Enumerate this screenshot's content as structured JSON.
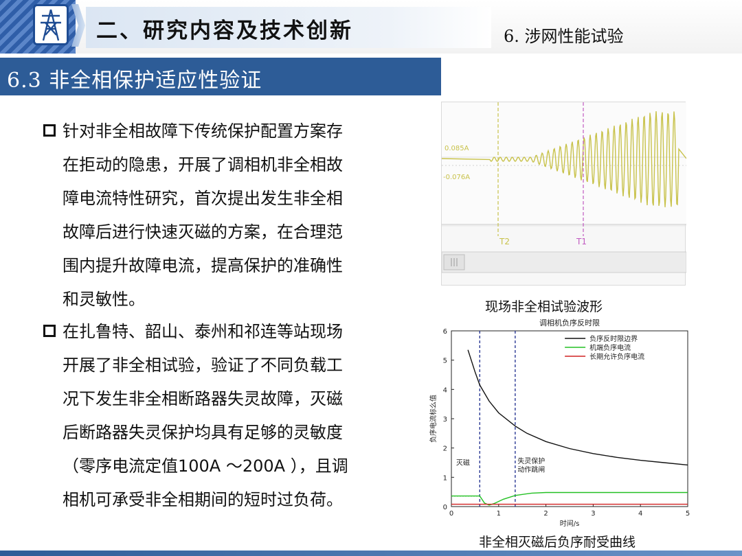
{
  "header": {
    "title": "二、研究内容及技术创新",
    "subtitle": "6. 涉网性能试验"
  },
  "section": {
    "title": "6.3 非全相保护适应性验证"
  },
  "bullets": [
    {
      "lines": [
        "针对非全相故障下传统保护配置方案存",
        "在拒动的隐患，开展了调相机非全相故",
        "障电流特性研究，首次提出发生非全相",
        "故障后进行快速灭磁的方案，在合理范",
        "围内提升故障电流，提高保护的准确性",
        "和灵敏性。"
      ]
    },
    {
      "lines": [
        "在扎鲁特、韶山、泰州和祁连等站现场",
        "开展了非全相试验，验证了不同负载工",
        "况下发生非全相断路器失灵故障，灭磁",
        "后断路器失灵保护均具有足够的灵敏度",
        "（零序电流定值100A ～200A ），且调",
        "相机可承受非全相期间的短时过负荷。"
      ]
    }
  ],
  "figure1": {
    "caption": "现场非全相试验波形",
    "labels": {
      "upper": "0.085A",
      "lower": "-0.076A",
      "t2": "T2",
      "t1": "T1"
    },
    "colors": {
      "wave": "#c8c24a",
      "marker": "#c05ac0"
    }
  },
  "chart_data": {
    "type": "line",
    "title": "调相机负序反时限",
    "xlabel": "时间/s",
    "ylabel": "负序电流标么值",
    "xlim": [
      0,
      5
    ],
    "ylim": [
      0,
      6
    ],
    "xticks": [
      "0",
      "1",
      "2",
      "3",
      "4",
      "5"
    ],
    "yticks": [
      "0",
      "1",
      "2",
      "3",
      "4",
      "5",
      "6"
    ],
    "legend_position": "top-right",
    "series": [
      {
        "name": "负序反时限边界",
        "color": "#111111",
        "x": [
          0.35,
          0.5,
          0.6,
          0.8,
          1.0,
          1.35,
          1.6,
          2.0,
          2.5,
          3.0,
          3.5,
          4.0,
          4.5,
          5.0
        ],
        "y": [
          5.35,
          4.6,
          4.15,
          3.6,
          3.2,
          2.75,
          2.5,
          2.22,
          1.98,
          1.81,
          1.68,
          1.58,
          1.5,
          1.42
        ]
      },
      {
        "name": "机端负序电流",
        "color": "#22c022",
        "x": [
          0,
          0.6,
          0.7,
          0.8,
          0.9,
          1.1,
          1.35,
          1.7,
          2.0,
          3.0,
          4.0,
          5.0
        ],
        "y": [
          0.36,
          0.36,
          0.12,
          0.05,
          0.1,
          0.25,
          0.38,
          0.46,
          0.48,
          0.48,
          0.48,
          0.48
        ]
      },
      {
        "name": "长期允许负序电流",
        "color": "#d02020",
        "x": [
          0,
          5
        ],
        "y": [
          0.08,
          0.08
        ]
      }
    ],
    "vlines": [
      0.6,
      1.35
    ],
    "annotations": [
      {
        "text": "灭磁",
        "x": 0.1,
        "y": 1.42
      },
      {
        "text": "失灵保护",
        "x": 1.4,
        "y": 1.48
      },
      {
        "text": "动作跳闸",
        "x": 1.4,
        "y": 1.18
      }
    ]
  },
  "figure2": {
    "caption": "非全相灭磁后负序耐受曲线"
  }
}
